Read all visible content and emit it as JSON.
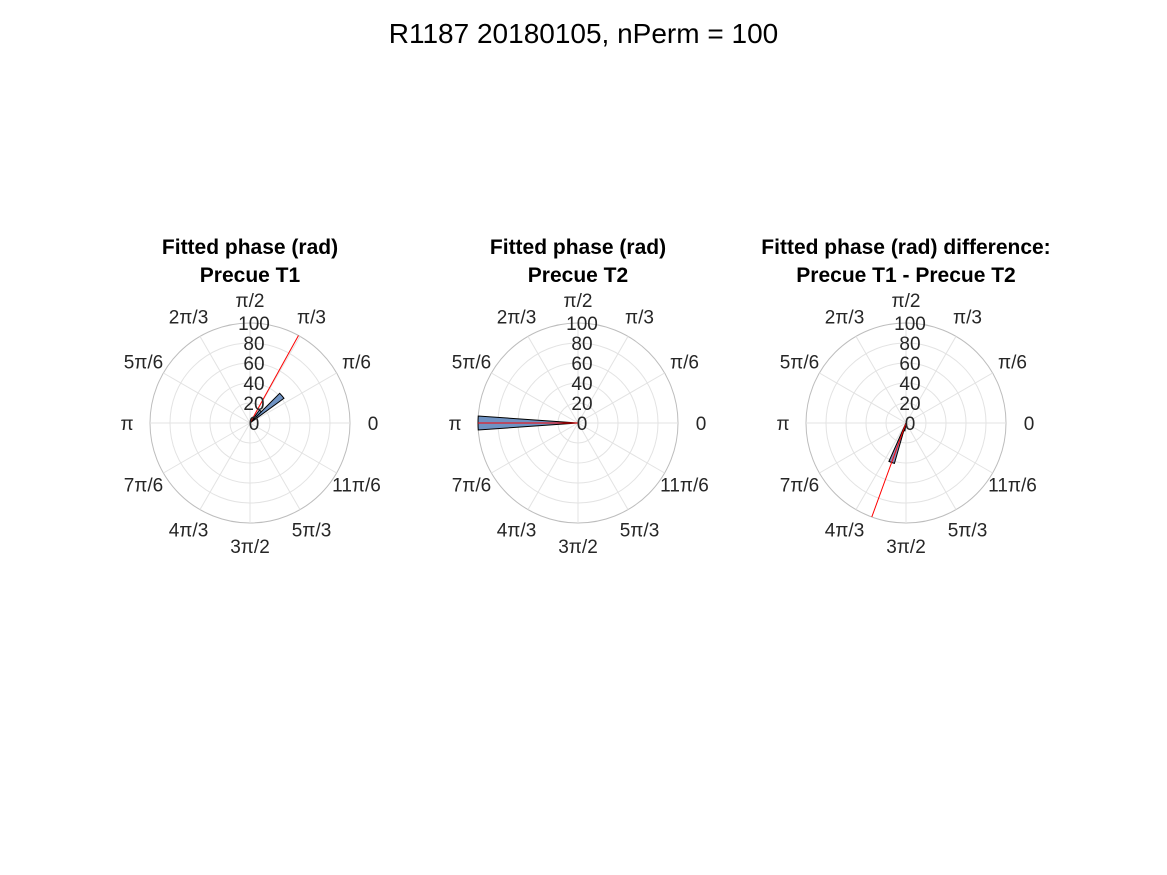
{
  "figure": {
    "title": "R1187 20180105, nPerm = 100"
  },
  "chart_data": [
    {
      "type": "polar_histogram",
      "title": [
        "Fitted phase (rad)",
        "Precue T1"
      ],
      "rlim": [
        0,
        100
      ],
      "rticks": [
        "0",
        "20",
        "40",
        "60",
        "80",
        "100"
      ],
      "theta_ticks": [
        "0",
        "π/6",
        "π/3",
        "π/2",
        "2π/3",
        "5π/6",
        "π",
        "7π/6",
        "4π/3",
        "3π/2",
        "5π/3",
        "11π/6"
      ],
      "bins": [
        {
          "theta_start_deg": 36,
          "theta_end_deg": 45,
          "value": 42
        },
        {
          "theta_start_deg": 45,
          "theta_end_deg": 54,
          "value": 16
        }
      ],
      "mean_line": {
        "theta_deg": 61,
        "length": 100
      },
      "bar_fill": "#6f93c4",
      "line_color": "#ff0000"
    },
    {
      "type": "polar_histogram",
      "title": [
        "Fitted phase (rad)",
        "Precue T2"
      ],
      "rlim": [
        0,
        100
      ],
      "rticks": [
        "0",
        "20",
        "40",
        "60",
        "80",
        "100"
      ],
      "theta_ticks": [
        "0",
        "π/6",
        "π/3",
        "π/2",
        "2π/3",
        "5π/6",
        "π",
        "7π/6",
        "4π/3",
        "3π/2",
        "5π/3",
        "11π/6"
      ],
      "bins": [
        {
          "theta_start_deg": 176,
          "theta_end_deg": 180,
          "value": 100
        },
        {
          "theta_start_deg": 180,
          "theta_end_deg": 184,
          "value": 100
        }
      ],
      "mean_line": {
        "theta_deg": 180,
        "length": 100
      },
      "bar_fill": "#6f93c4",
      "line_color": "#ff0000"
    },
    {
      "type": "polar_histogram",
      "title": [
        "Fitted phase (rad) difference:",
        "Precue T1 - Precue T2"
      ],
      "rlim": [
        0,
        100
      ],
      "rticks": [
        "0",
        "20",
        "40",
        "60",
        "80",
        "100"
      ],
      "theta_ticks": [
        "0",
        "π/6",
        "π/3",
        "π/2",
        "2π/3",
        "5π/6",
        "π",
        "7π/6",
        "4π/3",
        "3π/2",
        "5π/3",
        "11π/6"
      ],
      "bins": [
        {
          "theta_start_deg": 246,
          "theta_end_deg": 254,
          "value": 42
        },
        {
          "theta_start_deg": 254,
          "theta_end_deg": 262,
          "value": 8
        }
      ],
      "mean_line": {
        "theta_deg": 250,
        "length": 100
      },
      "bar_fill": "#8b89b8",
      "line_color": "#ff0000"
    }
  ]
}
